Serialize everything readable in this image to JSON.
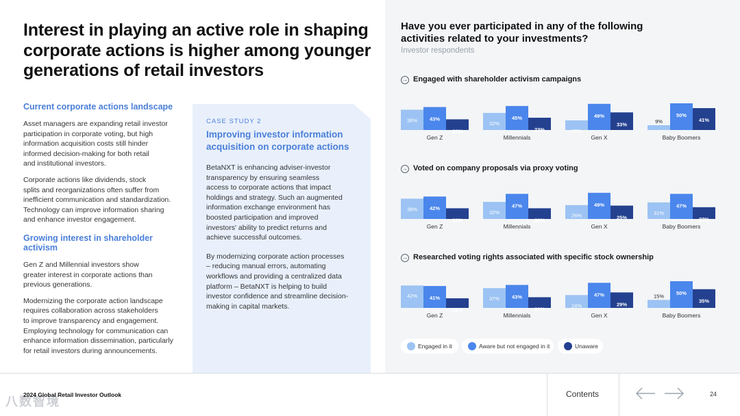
{
  "headline": "Interest in playing an active role in shaping corporate actions is higher among younger generations of retail investors",
  "left": {
    "section1_title": "Current corporate actions landscape",
    "section1_p1": "Asset managers are expanding retail investor\nparticipation in corporate voting, but high\ninformation acquisition costs still hinder\ninformed decision-making for both retail\nand institutional investors.",
    "section1_p2": "Corporate actions like dividends, stock\nsplits and reorganizations often suffer from\ninefficient communication and standardization.\nTechnology can improve information sharing\nand enhance investor engagement.",
    "section2_title": "Growing interest in shareholder activism",
    "section2_p1": "Gen Z and Millennial investors show\ngreater interest in corporate actions than\nprevious generations.",
    "section2_p2": "Modernizing the corporate action landscape\nrequires collaboration across stakeholders\nto improve transparency and engagement.\nEmploying technology for communication can\nenhance information dissemination, particularly\nfor retail investors during announcements."
  },
  "case_study": {
    "kicker": "CASE STUDY 2",
    "title": "Improving investor information\nacquisition on corporate actions",
    "p1": "BetaNXT is enhancing adviser-investor\ntransparency by ensuring seamless\naccess to corporate actions that impact\nholdings and strategy. Such an augmented\ninformation exchange environment has\nboosted participation and improved\ninvestors' ability to predict returns and\nachieve successful outcomes.",
    "p2": "By modernizing corporate action processes\n– reducing manual errors, automating\nworkflows and providing a centralized data\nplatform – BetaNXT is helping to build\ninvestor confidence and streamline decision-\nmaking in capital markets."
  },
  "right": {
    "title": "Have you ever participated in any of the following\nactivities related to your investments?",
    "subtitle": "Investor respondents"
  },
  "colors": {
    "engaged": "#9cc3f3",
    "aware": "#4a86ec",
    "unaware": "#24418f",
    "accent": "#4a7fd8"
  },
  "chart_data": [
    {
      "type": "bar",
      "title": "Engaged with shareholder activism campaigns",
      "categories": [
        "Gen Z",
        "Millennials",
        "Gen X",
        "Baby Boomers"
      ],
      "series": [
        {
          "name": "Engaged in it",
          "values": [
            38,
            32,
            18,
            9
          ]
        },
        {
          "name": "Aware but not engaged in it",
          "values": [
            43,
            45,
            49,
            50
          ]
        },
        {
          "name": "Unaware",
          "values": [
            20,
            23,
            33,
            41
          ]
        }
      ],
      "value_suffix": "%"
    },
    {
      "type": "bar",
      "title": "Voted on company proposals via proxy voting",
      "categories": [
        "Gen Z",
        "Millennials",
        "Gen X",
        "Baby Boomers"
      ],
      "series": [
        {
          "name": "Engaged in it",
          "values": [
            38,
            32,
            26,
            31
          ]
        },
        {
          "name": "Aware but not engaged in it",
          "values": [
            42,
            47,
            49,
            47
          ]
        },
        {
          "name": "Unaware",
          "values": [
            20,
            20,
            25,
            22
          ]
        }
      ],
      "value_suffix": "%"
    },
    {
      "type": "bar",
      "title": "Researched voting rights associated with specific stock ownership",
      "categories": [
        "Gen Z",
        "Millennials",
        "Gen X",
        "Baby Boomers"
      ],
      "series": [
        {
          "name": "Engaged in it",
          "values": [
            42,
            37,
            24,
            15
          ]
        },
        {
          "name": "Aware but not engaged in it",
          "values": [
            41,
            43,
            47,
            50
          ]
        },
        {
          "name": "Unaware",
          "values": [
            18,
            20,
            29,
            35
          ]
        }
      ],
      "value_suffix": "%"
    }
  ],
  "legend": [
    "Engaged in it",
    "Aware but not engaged in it",
    "Unaware"
  ],
  "footer": {
    "report_title": "2024 Global Retail Investor Outlook",
    "contents_label": "Contents",
    "page_number": "24",
    "watermark": "八数智境"
  }
}
